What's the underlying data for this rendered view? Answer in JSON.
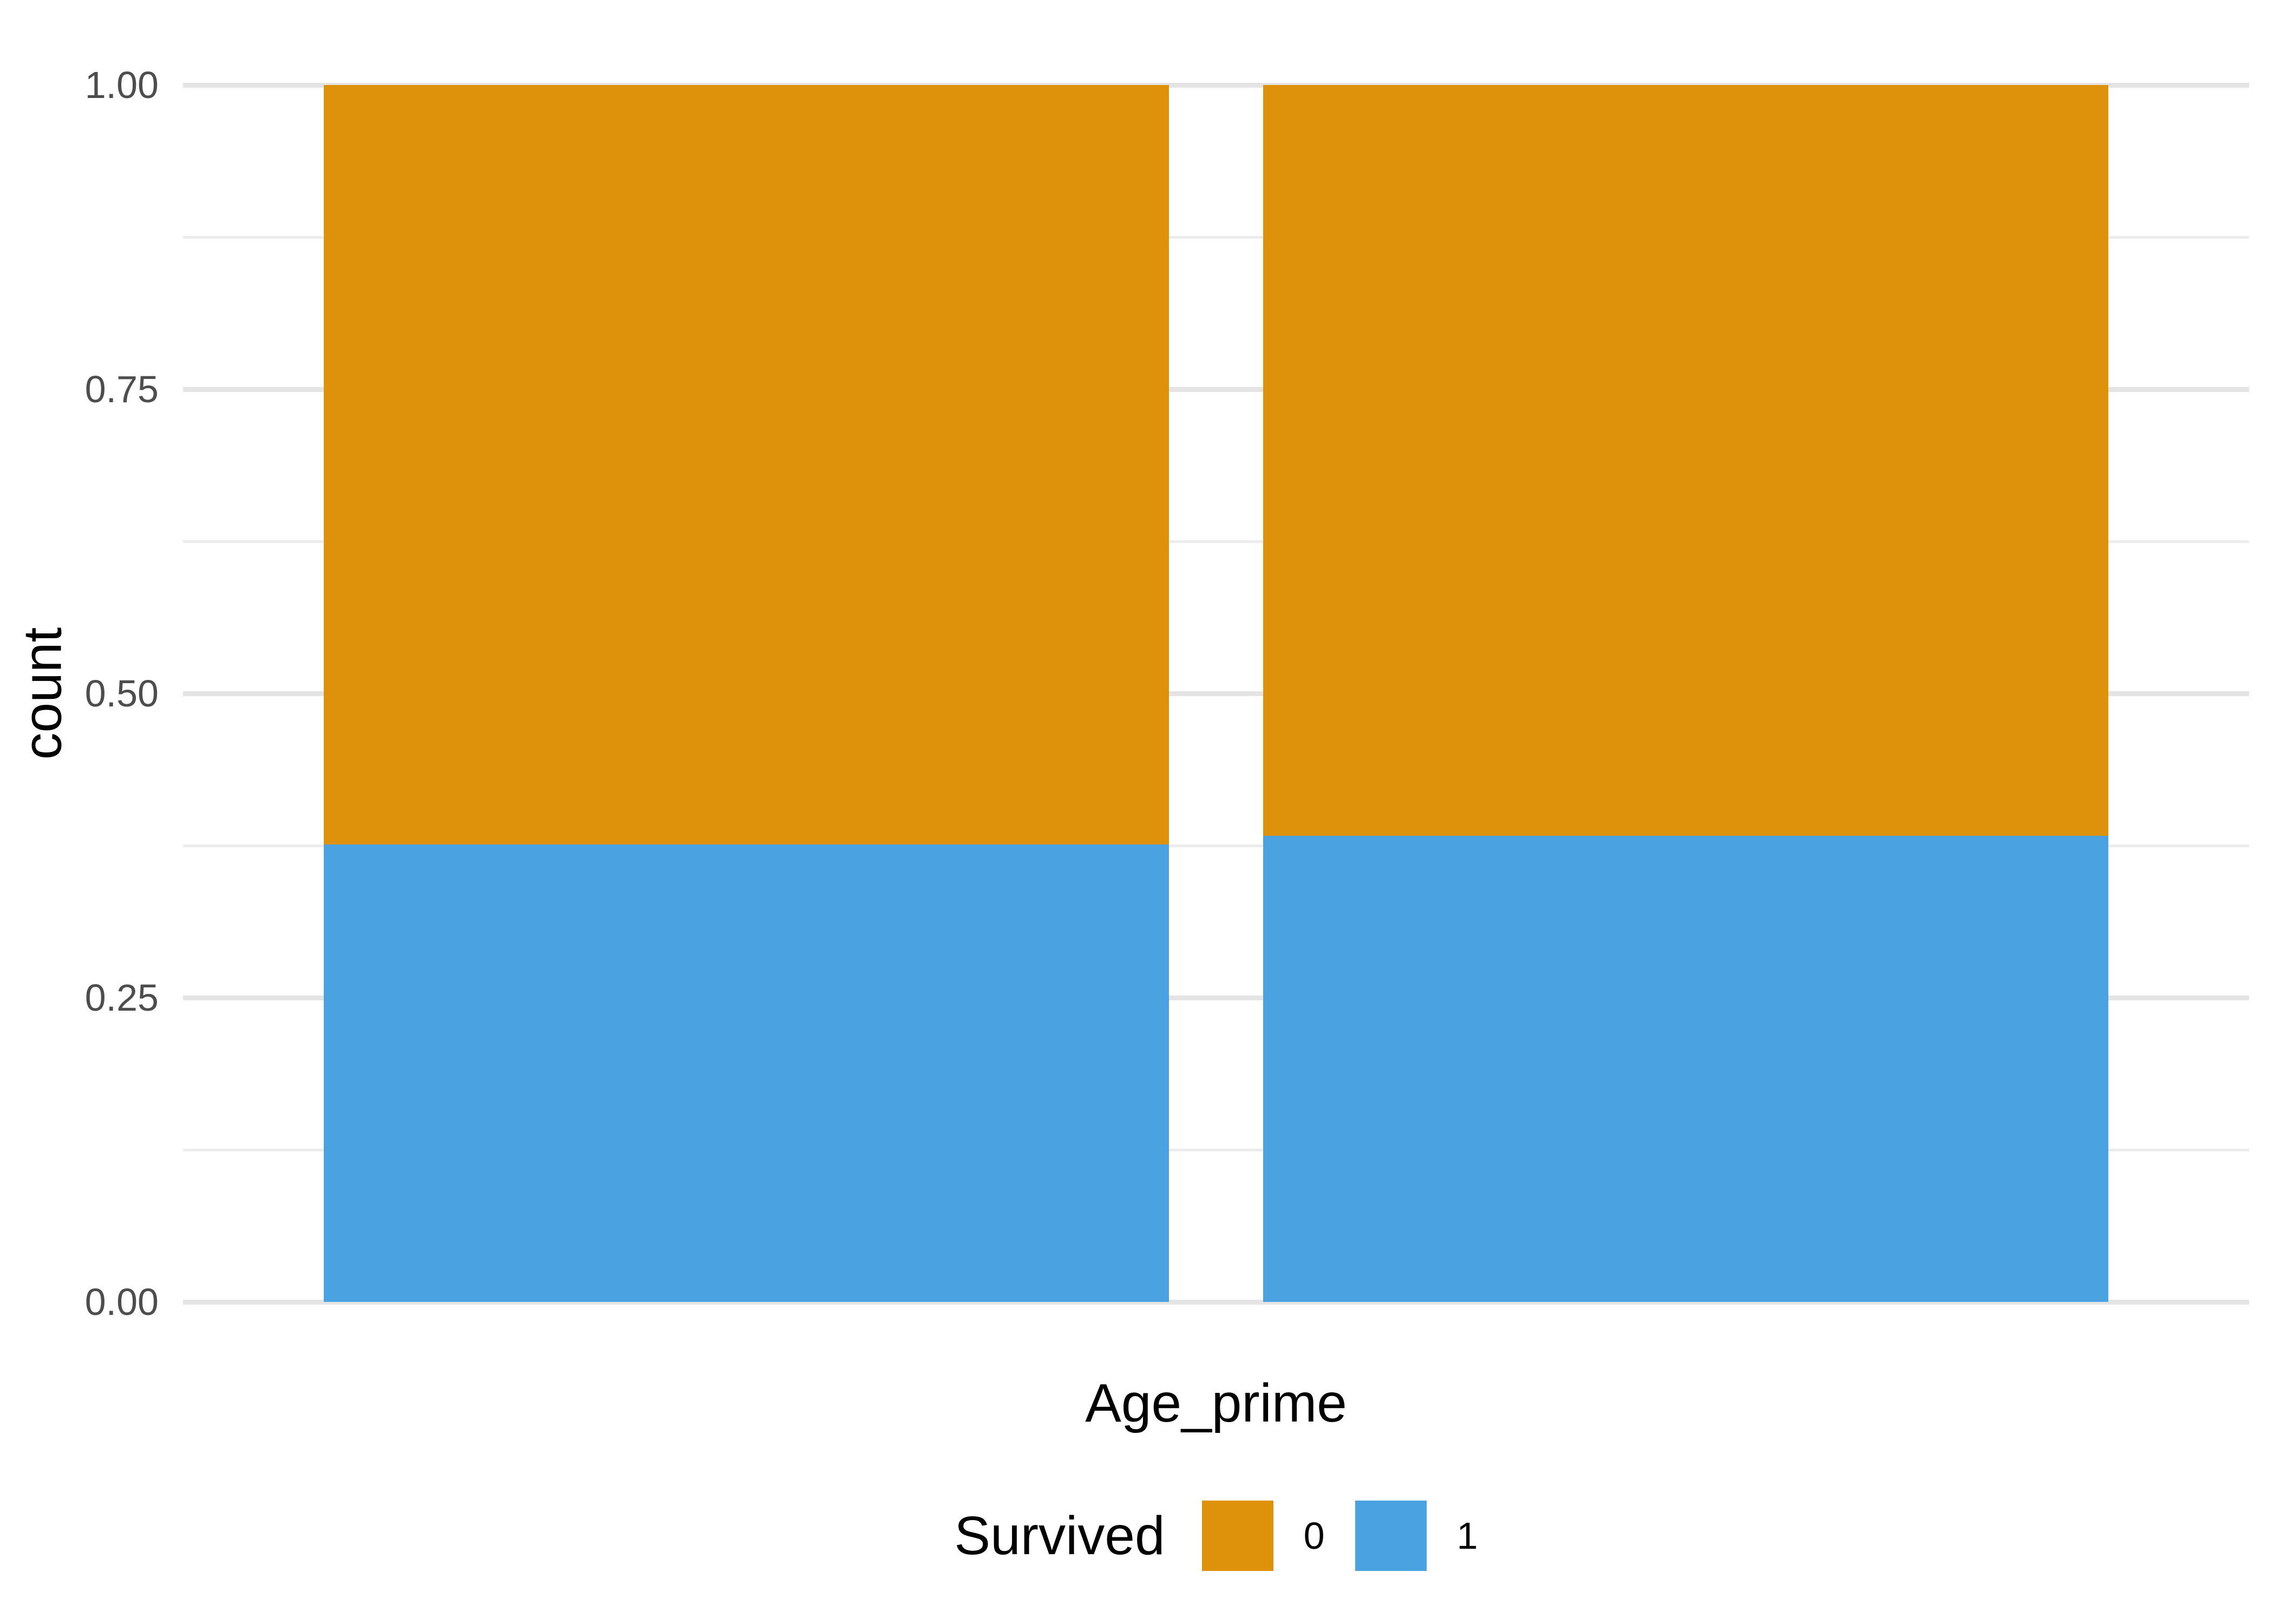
{
  "chart_data": {
    "type": "bar",
    "stacking": "fill",
    "title": "",
    "xlabel": "Age_prime",
    "ylabel": "count",
    "categories": [
      "",
      ""
    ],
    "series": [
      {
        "name": "0",
        "color": "#DE910A",
        "values": [
          0.624,
          0.617
        ]
      },
      {
        "name": "1",
        "color": "#4AA3E0",
        "values": [
          0.376,
          0.383
        ]
      }
    ],
    "ylim": [
      0,
      1
    ],
    "y_axis": {
      "ticks": [
        {
          "v": 0.0,
          "label": "0.00"
        },
        {
          "v": 0.25,
          "label": "0.25"
        },
        {
          "v": 0.5,
          "label": "0.50"
        },
        {
          "v": 0.75,
          "label": "0.75"
        },
        {
          "v": 1.0,
          "label": "1.00"
        }
      ],
      "minor_gridlines": [
        0.125,
        0.375,
        0.625,
        0.875
      ]
    },
    "x_axis": {
      "tick_labels_visible": false
    },
    "grid": true,
    "legend_position": "bottom",
    "style_colors": {
      "background": "#FFFFFF",
      "major_grid": "#E4E4E4",
      "minor_grid": "#ECECEC",
      "tick_text": "#4D4D4D",
      "title_text": "#000000"
    }
  },
  "legend": {
    "title": "Survived",
    "entries": [
      {
        "label": "0",
        "color": "#DE910A"
      },
      {
        "label": "1",
        "color": "#4AA3E0"
      }
    ]
  }
}
